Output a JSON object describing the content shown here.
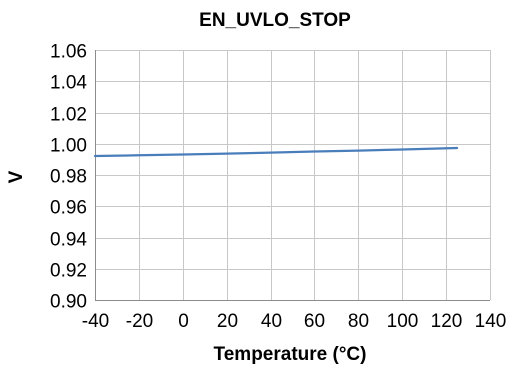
{
  "chart_data": {
    "type": "line",
    "title": "EN_UVLO_STOP",
    "xlabel": "Temperature (°C)",
    "ylabel": "V",
    "xlim": [
      -40,
      140
    ],
    "ylim": [
      0.9,
      1.06
    ],
    "x_ticks": [
      -40,
      -20,
      0,
      20,
      40,
      60,
      80,
      100,
      120,
      140
    ],
    "y_ticks": [
      0.9,
      0.92,
      0.94,
      0.96,
      0.98,
      1.0,
      1.02,
      1.04,
      1.06
    ],
    "x_tick_labels": [
      "-40",
      "-20",
      "0",
      "20",
      "40",
      "60",
      "80",
      "100",
      "120",
      "140"
    ],
    "y_tick_labels": [
      "0.90",
      "0.92",
      "0.94",
      "0.96",
      "0.98",
      "1.00",
      "1.02",
      "1.04",
      "1.06"
    ],
    "grid": true,
    "legend": "none",
    "series": [
      {
        "color": "#4a7ebb",
        "x": [
          -40,
          -20,
          0,
          20,
          40,
          60,
          80,
          100,
          125
        ],
        "y": [
          0.9922,
          0.9926,
          0.9931,
          0.9937,
          0.9943,
          0.995,
          0.9956,
          0.9963,
          0.9973
        ]
      }
    ]
  }
}
